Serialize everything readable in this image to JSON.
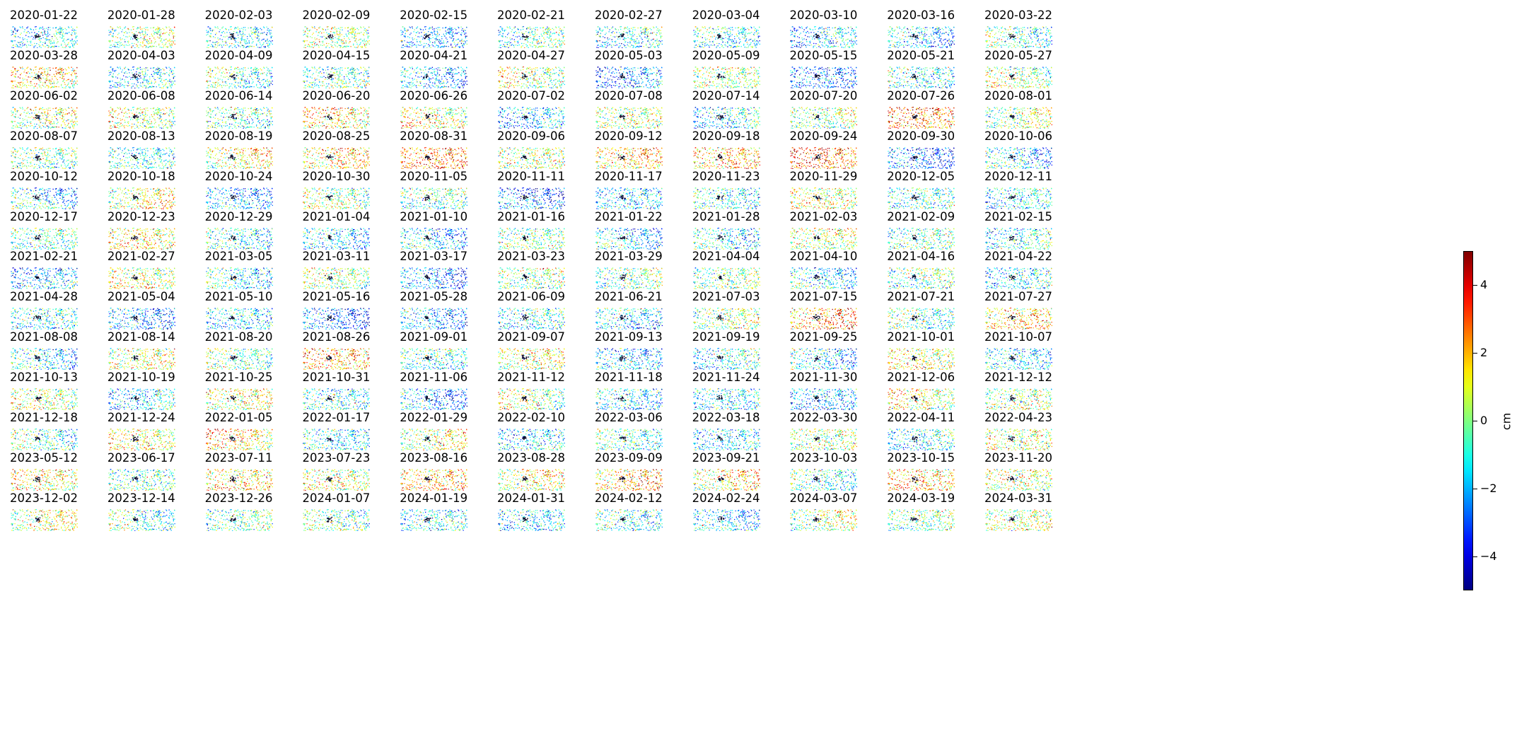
{
  "chart_data": {
    "type": "heatmap",
    "panel_type": "point-scatter displacement map",
    "grid": false,
    "axes": "off",
    "colormap": "jet",
    "color_range": [
      -5,
      5
    ],
    "colorbar": {
      "label": "cm",
      "placement": "right",
      "ticks": [
        -4,
        -2,
        0,
        2,
        4
      ],
      "tick_labels": [
        "−4",
        "−2",
        "0",
        "2",
        "4"
      ]
    },
    "panels": [
      {
        "date": "2020-01-22",
        "mean": -1.3
      },
      {
        "date": "2020-01-28",
        "mean": 0.3
      },
      {
        "date": "2020-02-03",
        "mean": -1.4
      },
      {
        "date": "2020-02-09",
        "mean": 0.5
      },
      {
        "date": "2020-02-15",
        "mean": -2.2
      },
      {
        "date": "2020-02-21",
        "mean": -0.8
      },
      {
        "date": "2020-02-27",
        "mean": -1.4
      },
      {
        "date": "2020-03-04",
        "mean": -1.0
      },
      {
        "date": "2020-03-10",
        "mean": -1.8
      },
      {
        "date": "2020-03-16",
        "mean": -1.9
      },
      {
        "date": "2020-03-22",
        "mean": -0.6
      },
      {
        "date": "2020-03-28",
        "mean": 1.5
      },
      {
        "date": "2020-04-03",
        "mean": -1.5
      },
      {
        "date": "2020-04-09",
        "mean": -0.5
      },
      {
        "date": "2020-04-15",
        "mean": -0.6
      },
      {
        "date": "2020-04-21",
        "mean": -2.0
      },
      {
        "date": "2020-04-27",
        "mean": 0.5
      },
      {
        "date": "2020-05-03",
        "mean": -2.8
      },
      {
        "date": "2020-05-09",
        "mean": 0.3
      },
      {
        "date": "2020-05-15",
        "mean": -2.7
      },
      {
        "date": "2020-05-21",
        "mean": -1.0
      },
      {
        "date": "2020-05-27",
        "mean": 0.3
      },
      {
        "date": "2020-06-02",
        "mean": 0.6
      },
      {
        "date": "2020-06-08",
        "mean": 0.5
      },
      {
        "date": "2020-06-14",
        "mean": -0.8
      },
      {
        "date": "2020-06-20",
        "mean": 1.6
      },
      {
        "date": "2020-06-26",
        "mean": 1.0
      },
      {
        "date": "2020-07-02",
        "mean": -1.8
      },
      {
        "date": "2020-07-08",
        "mean": 0.4
      },
      {
        "date": "2020-07-14",
        "mean": -1.5
      },
      {
        "date": "2020-07-20",
        "mean": 0.1
      },
      {
        "date": "2020-07-26",
        "mean": 2.8
      },
      {
        "date": "2020-08-01",
        "mean": 0.2
      },
      {
        "date": "2020-08-07",
        "mean": -0.4
      },
      {
        "date": "2020-08-13",
        "mean": -1.2
      },
      {
        "date": "2020-08-19",
        "mean": 1.2
      },
      {
        "date": "2020-08-25",
        "mean": 1.5
      },
      {
        "date": "2020-08-31",
        "mean": 2.6
      },
      {
        "date": "2020-09-06",
        "mean": 0.5
      },
      {
        "date": "2020-09-12",
        "mean": 1.8
      },
      {
        "date": "2020-09-18",
        "mean": 2.0
      },
      {
        "date": "2020-09-24",
        "mean": 3.0
      },
      {
        "date": "2020-09-30",
        "mean": -2.8
      },
      {
        "date": "2020-10-06",
        "mean": -1.6
      },
      {
        "date": "2020-10-12",
        "mean": -1.4
      },
      {
        "date": "2020-10-18",
        "mean": 1.0
      },
      {
        "date": "2020-10-24",
        "mean": -2.1
      },
      {
        "date": "2020-10-30",
        "mean": 0.2
      },
      {
        "date": "2020-11-05",
        "mean": -0.6
      },
      {
        "date": "2020-11-11",
        "mean": -2.8
      },
      {
        "date": "2020-11-17",
        "mean": -2.0
      },
      {
        "date": "2020-11-23",
        "mean": -1.0
      },
      {
        "date": "2020-11-29",
        "mean": 0.9
      },
      {
        "date": "2020-12-05",
        "mean": -0.9
      },
      {
        "date": "2020-12-11",
        "mean": -1.3
      },
      {
        "date": "2020-12-17",
        "mean": -0.5
      },
      {
        "date": "2020-12-23",
        "mean": 1.4
      },
      {
        "date": "2020-12-29",
        "mean": -1.1
      },
      {
        "date": "2021-01-04",
        "mean": -1.7
      },
      {
        "date": "2021-01-10",
        "mean": -1.9
      },
      {
        "date": "2021-01-16",
        "mean": -0.2
      },
      {
        "date": "2021-01-22",
        "mean": -1.8
      },
      {
        "date": "2021-01-28",
        "mean": -1.3
      },
      {
        "date": "2021-02-03",
        "mean": 0.6
      },
      {
        "date": "2021-02-09",
        "mean": -0.6
      },
      {
        "date": "2021-02-15",
        "mean": -1.1
      },
      {
        "date": "2021-02-21",
        "mean": -2.3
      },
      {
        "date": "2021-02-27",
        "mean": 0.8
      },
      {
        "date": "2021-03-05",
        "mean": -1.0
      },
      {
        "date": "2021-03-11",
        "mean": 0.2
      },
      {
        "date": "2021-03-17",
        "mean": -2.6
      },
      {
        "date": "2021-03-23",
        "mean": 0.1
      },
      {
        "date": "2021-03-29",
        "mean": -0.4
      },
      {
        "date": "2021-04-04",
        "mean": 0.0
      },
      {
        "date": "2021-04-10",
        "mean": -1.6
      },
      {
        "date": "2021-04-16",
        "mean": -0.4
      },
      {
        "date": "2021-04-22",
        "mean": -1.4
      },
      {
        "date": "2021-04-28",
        "mean": -1.2
      },
      {
        "date": "2021-05-04",
        "mean": -2.4
      },
      {
        "date": "2021-05-10",
        "mean": -1.6
      },
      {
        "date": "2021-05-16",
        "mean": -2.9
      },
      {
        "date": "2021-05-28",
        "mean": -2.2
      },
      {
        "date": "2021-06-09",
        "mean": -1.2
      },
      {
        "date": "2021-06-21",
        "mean": -1.6
      },
      {
        "date": "2021-07-03",
        "mean": 0.2
      },
      {
        "date": "2021-07-15",
        "mean": 2.5
      },
      {
        "date": "2021-07-21",
        "mean": -0.6
      },
      {
        "date": "2021-07-27",
        "mean": 1.8
      },
      {
        "date": "2021-08-08",
        "mean": -1.4
      },
      {
        "date": "2021-08-14",
        "mean": 0.9
      },
      {
        "date": "2021-08-20",
        "mean": -0.2
      },
      {
        "date": "2021-08-26",
        "mean": 2.3
      },
      {
        "date": "2021-09-01",
        "mean": -1.0
      },
      {
        "date": "2021-09-07",
        "mean": 0.7
      },
      {
        "date": "2021-09-13",
        "mean": -2.0
      },
      {
        "date": "2021-09-19",
        "mean": -1.2
      },
      {
        "date": "2021-09-25",
        "mean": -1.8
      },
      {
        "date": "2021-10-01",
        "mean": 1.1
      },
      {
        "date": "2021-10-07",
        "mean": -1.5
      },
      {
        "date": "2021-10-13",
        "mean": 0.6
      },
      {
        "date": "2021-10-19",
        "mean": -1.6
      },
      {
        "date": "2021-10-25",
        "mean": 1.0
      },
      {
        "date": "2021-10-31",
        "mean": -1.1
      },
      {
        "date": "2021-11-06",
        "mean": -2.4
      },
      {
        "date": "2021-11-12",
        "mean": 0.4
      },
      {
        "date": "2021-11-18",
        "mean": -1.5
      },
      {
        "date": "2021-11-24",
        "mean": -1.4
      },
      {
        "date": "2021-11-30",
        "mean": -2.2
      },
      {
        "date": "2021-12-06",
        "mean": 0.9
      },
      {
        "date": "2021-12-12",
        "mean": 0.2
      },
      {
        "date": "2021-12-18",
        "mean": -0.8
      },
      {
        "date": "2021-12-24",
        "mean": 1.1
      },
      {
        "date": "2022-01-05",
        "mean": 1.7
      },
      {
        "date": "2022-01-17",
        "mean": -1.3
      },
      {
        "date": "2022-01-29",
        "mean": 0.8
      },
      {
        "date": "2022-02-10",
        "mean": -1.7
      },
      {
        "date": "2022-03-06",
        "mean": -0.7
      },
      {
        "date": "2022-03-18",
        "mean": -1.6
      },
      {
        "date": "2022-03-30",
        "mean": 0.4
      },
      {
        "date": "2022-04-11",
        "mean": -1.4
      },
      {
        "date": "2022-04-23",
        "mean": 0.6
      },
      {
        "date": "2023-05-12",
        "mean": 1.3
      },
      {
        "date": "2023-06-17",
        "mean": -0.6
      },
      {
        "date": "2023-07-11",
        "mean": 1.5
      },
      {
        "date": "2023-07-23",
        "mean": 0.8
      },
      {
        "date": "2023-08-16",
        "mean": 1.9
      },
      {
        "date": "2023-08-28",
        "mean": 1.1
      },
      {
        "date": "2023-09-09",
        "mean": 2.0
      },
      {
        "date": "2023-09-21",
        "mean": 1.4
      },
      {
        "date": "2023-10-03",
        "mean": -0.9
      },
      {
        "date": "2023-10-15",
        "mean": 1.8
      },
      {
        "date": "2023-11-20",
        "mean": 0.7
      },
      {
        "date": "2023-12-02",
        "mean": 0.8
      },
      {
        "date": "2023-12-14",
        "mean": -0.7
      },
      {
        "date": "2023-12-26",
        "mean": -0.4
      },
      {
        "date": "2024-01-07",
        "mean": -0.3
      },
      {
        "date": "2024-01-19",
        "mean": -1.1
      },
      {
        "date": "2024-01-31",
        "mean": -1.6
      },
      {
        "date": "2024-02-12",
        "mean": -1.0
      },
      {
        "date": "2024-02-24",
        "mean": -1.8
      },
      {
        "date": "2024-03-07",
        "mean": 0.3
      },
      {
        "date": "2024-03-19",
        "mean": -0.2
      },
      {
        "date": "2024-03-31",
        "mean": 0.5
      }
    ]
  }
}
